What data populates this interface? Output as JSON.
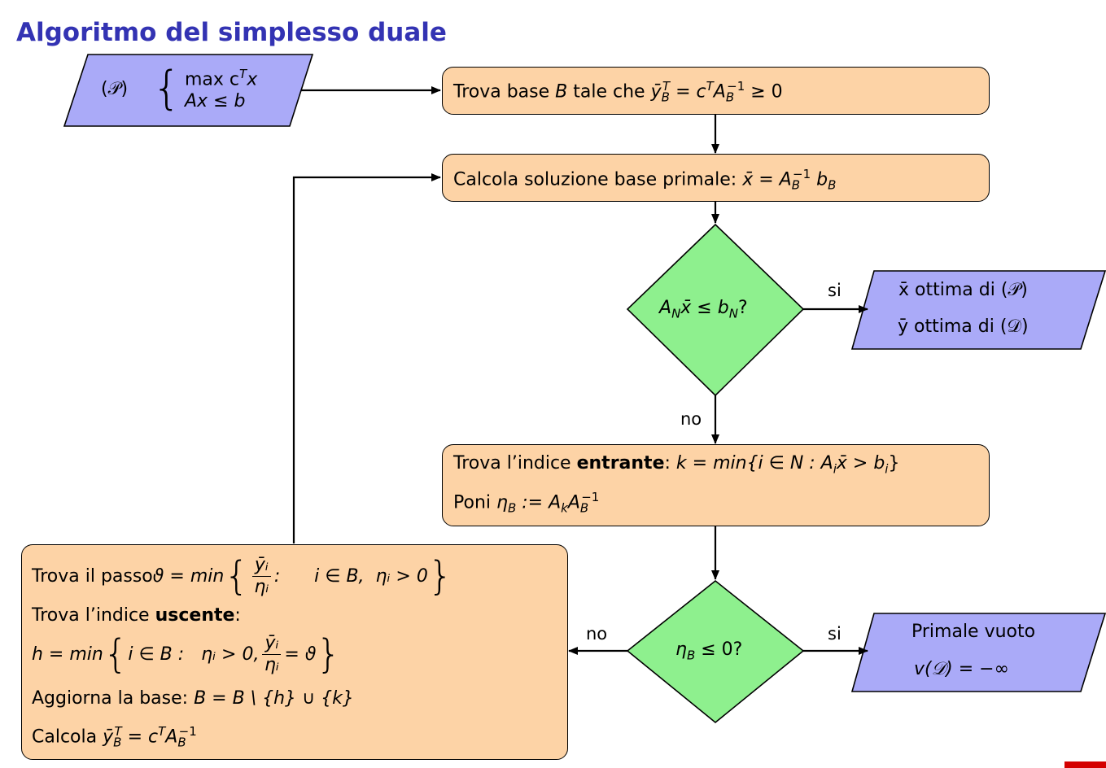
{
  "title": "Algoritmo del simplesso duale",
  "input": {
    "label": "(𝒫)",
    "row1": "max  c",
    "row1_sup": "T",
    "row1_end": "x",
    "row2": "Ax ≤ b"
  },
  "box1": {
    "text_a": "Trova  base  ",
    "text_b": "B",
    "text_c": "  tale  che  ",
    "text_d": "ȳ",
    "sub": "B",
    "sup": "T",
    "text_e": " = c",
    "sup2": "T",
    "text_f": "A",
    "sub2": "B",
    "sup3": "−1",
    "text_g": " ≥ 0"
  },
  "box2": {
    "text_a": "Calcola  soluzione  base  primale:  ",
    "text_b": "x̄ = A",
    "sub": "B",
    "sup": "−1",
    "text_c": " b",
    "sub2": "B"
  },
  "diamond1": {
    "text_a": "A",
    "sub": "N",
    "text_b": "x̄ ≤ b",
    "sub2": "N",
    "text_c": "?"
  },
  "out1": {
    "line1": "x̄  ottima  di  (𝒫)",
    "line2": "ȳ  ottima  di  (𝒟)"
  },
  "labels": {
    "si1": "si",
    "no1": "no",
    "si2": "si",
    "no2": "no"
  },
  "box3": {
    "l1_a": "Trova  l’indice  ",
    "l1_bold": "entrante",
    "l1_b": ":  ",
    "l1_c": "k = min{i ∈ N :  A",
    "l1_sub": "i",
    "l1_d": "x̄ > b",
    "l1_sub2": "i",
    "l1_e": "}",
    "l2_a": "Poni  ",
    "l2_b": "η",
    "l2_sub": "B",
    "l2_c": " := A",
    "l2_sub2": "k",
    "l2_d": "A",
    "l2_sub3": "B",
    "l2_sup": "−1"
  },
  "diamond2": {
    "text_a": "η",
    "sub": "B",
    "text_b": " ≤ 0?"
  },
  "out2": {
    "line1": "Primale  vuoto",
    "line2": "v(𝒟)  =  −∞"
  },
  "box4": {
    "l1_a": "Trova  il  passo  ",
    "l1_b": "ϑ = min",
    "l1_num": "ȳᵢ",
    "l1_den": "ηᵢ",
    "l1_c": ":      i ∈ B,  ηᵢ > 0",
    "l2_a": "Trova  l’indice  ",
    "l2_bold": "uscente",
    "l2_b": ":",
    "l3_a": "h = min",
    "l3_b": "i ∈ B :   ηᵢ > 0,",
    "l3_num": "ȳᵢ",
    "l3_den": "ηᵢ",
    "l3_c": "= ϑ",
    "l4_a": "Aggiorna  la  base:  ",
    "l4_b": "B = B \\ {h} ∪ {k}",
    "l5_a": "Calcola  ",
    "l5_b": "ȳ",
    "l5_sub": "B",
    "l5_sup": "T",
    "l5_c": " = c",
    "l5_sup2": "T",
    "l5_d": "A",
    "l5_sub2": "B",
    "l5_sup3": "−1"
  },
  "colors": {
    "title": "#3333b3",
    "process_fill": "#fdd3a6",
    "decision_fill": "#8ef08e",
    "io_fill": "#aaaaf8"
  }
}
